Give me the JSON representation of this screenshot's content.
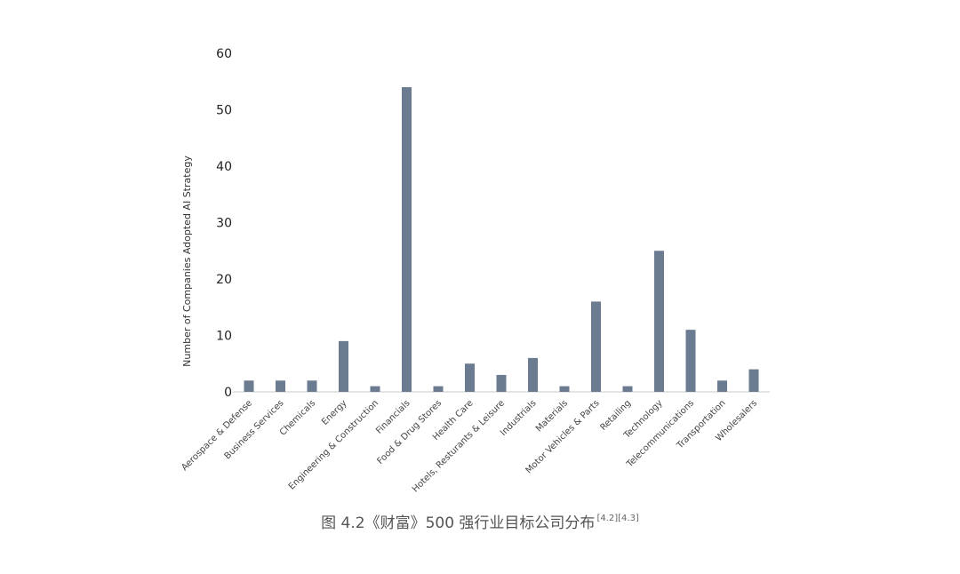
{
  "chart_data": {
    "type": "bar",
    "title": "",
    "xlabel": "",
    "ylabel": "Number of Companies Adopted AI Strategy",
    "ylim": [
      0,
      60
    ],
    "yticks": [
      0,
      10,
      20,
      30,
      40,
      50,
      60
    ],
    "grid": false,
    "bar_color": "#6b7b90",
    "categories": [
      "Aerospace & Defense",
      "Business Services",
      "Chemicals",
      "Energy",
      "Engineering & Construction",
      "Financials",
      "Food & Drug Stores",
      "Health Care",
      "Hotels, Resturants & Leisure",
      "Industrials",
      "Materials",
      "Motor Vehicles & Parts",
      "Retailing",
      "Technology",
      "Telecommunications",
      "Transportation",
      "Wholesalers"
    ],
    "values": [
      2,
      2,
      2,
      9,
      1,
      54,
      1,
      5,
      3,
      6,
      1,
      16,
      1,
      25,
      11,
      2,
      4
    ]
  },
  "caption": {
    "text": "图 4.2《财富》500 强行业目标公司分布",
    "refs": "[4.2][4.3]"
  }
}
